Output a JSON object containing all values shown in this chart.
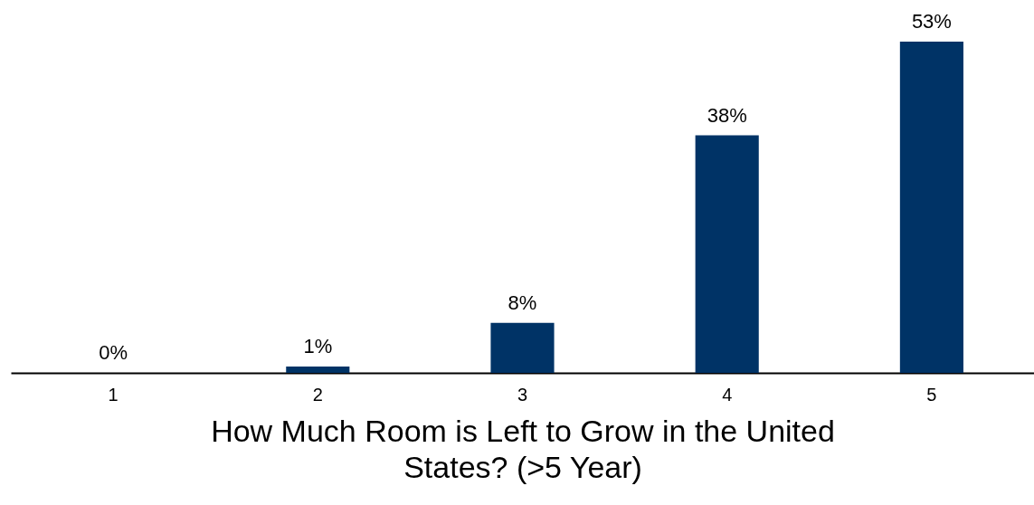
{
  "chart_data": {
    "type": "bar",
    "xlabel": "How Much Room is Left to Grow in the United States? (>5 Year)",
    "categories": [
      "1",
      "2",
      "3",
      "4",
      "5"
    ],
    "values": [
      0,
      1,
      8,
      38,
      53
    ],
    "value_labels": [
      "0%",
      "1%",
      "8%",
      "38%",
      "53%"
    ],
    "color": "#003366",
    "grid": false
  }
}
